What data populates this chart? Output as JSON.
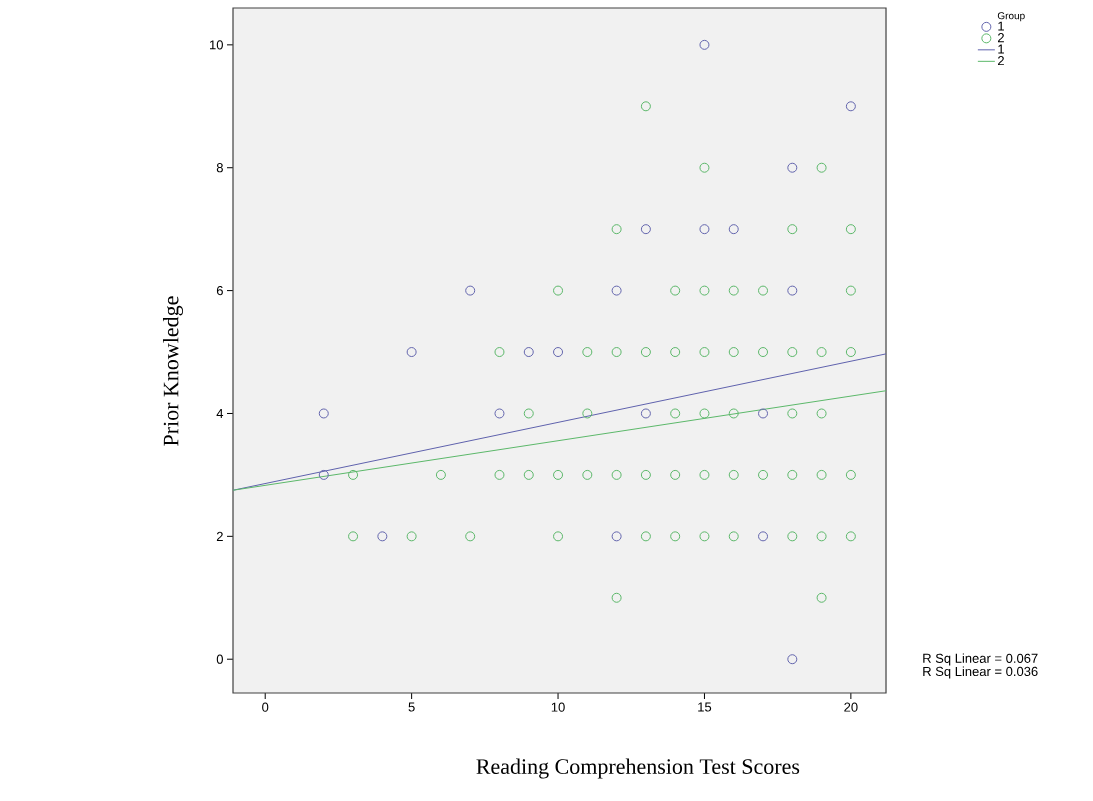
{
  "chart_data": {
    "type": "scatter",
    "xlabel": "Reading Comprehension Test Scores",
    "ylabel": "Prior Knowledge",
    "legend_title": "Group",
    "legend": "top right",
    "xlim": [
      -1.1,
      21.2
    ],
    "ylim": [
      -0.55,
      10.6
    ],
    "xticks": [
      0,
      5,
      10,
      15,
      20
    ],
    "yticks": [
      0,
      2,
      4,
      6,
      8,
      10
    ],
    "annotations": [
      "R Sq Linear = 0.067",
      "R Sq Linear = 0.036"
    ],
    "series": [
      {
        "name": "1",
        "type": "scatter",
        "marker": "circle",
        "color": "#6466ae",
        "x": [
          15,
          20,
          18,
          13,
          15,
          16,
          7,
          12,
          18,
          5,
          9,
          10,
          2,
          8,
          13,
          17,
          2,
          4,
          12,
          17,
          18
        ],
        "values": [
          10,
          9,
          8,
          7,
          7,
          7,
          6,
          6,
          6,
          5,
          5,
          5,
          4,
          4,
          4,
          4,
          3,
          2,
          2,
          2,
          0
        ]
      },
      {
        "name": "2",
        "type": "scatter",
        "marker": "circle",
        "color": "#5cb86a",
        "x": [
          13,
          15,
          19,
          12,
          18,
          20,
          10,
          14,
          15,
          16,
          17,
          20,
          8,
          11,
          12,
          13,
          14,
          15,
          16,
          17,
          18,
          19,
          20,
          9,
          11,
          14,
          15,
          16,
          18,
          19,
          3,
          6,
          8,
          9,
          10,
          11,
          12,
          13,
          14,
          15,
          16,
          17,
          18,
          19,
          20,
          3,
          5,
          7,
          10,
          13,
          14,
          15,
          16,
          18,
          19,
          20,
          12,
          19
        ],
        "values": [
          9,
          8,
          8,
          7,
          7,
          7,
          6,
          6,
          6,
          6,
          6,
          6,
          5,
          5,
          5,
          5,
          5,
          5,
          5,
          5,
          5,
          5,
          5,
          4,
          4,
          4,
          4,
          4,
          4,
          4,
          3,
          3,
          3,
          3,
          3,
          3,
          3,
          3,
          3,
          3,
          3,
          3,
          3,
          3,
          3,
          2,
          2,
          2,
          2,
          2,
          2,
          2,
          2,
          2,
          2,
          2,
          1,
          1
        ]
      },
      {
        "name": "1",
        "type": "line",
        "color": "#5f62ad",
        "x": [
          -1.1,
          21.2
        ],
        "values": [
          2.75,
          4.97
        ]
      },
      {
        "name": "2",
        "type": "line",
        "color": "#5cb86a",
        "x": [
          -1.1,
          21.2
        ],
        "values": [
          2.75,
          4.37
        ]
      }
    ]
  }
}
